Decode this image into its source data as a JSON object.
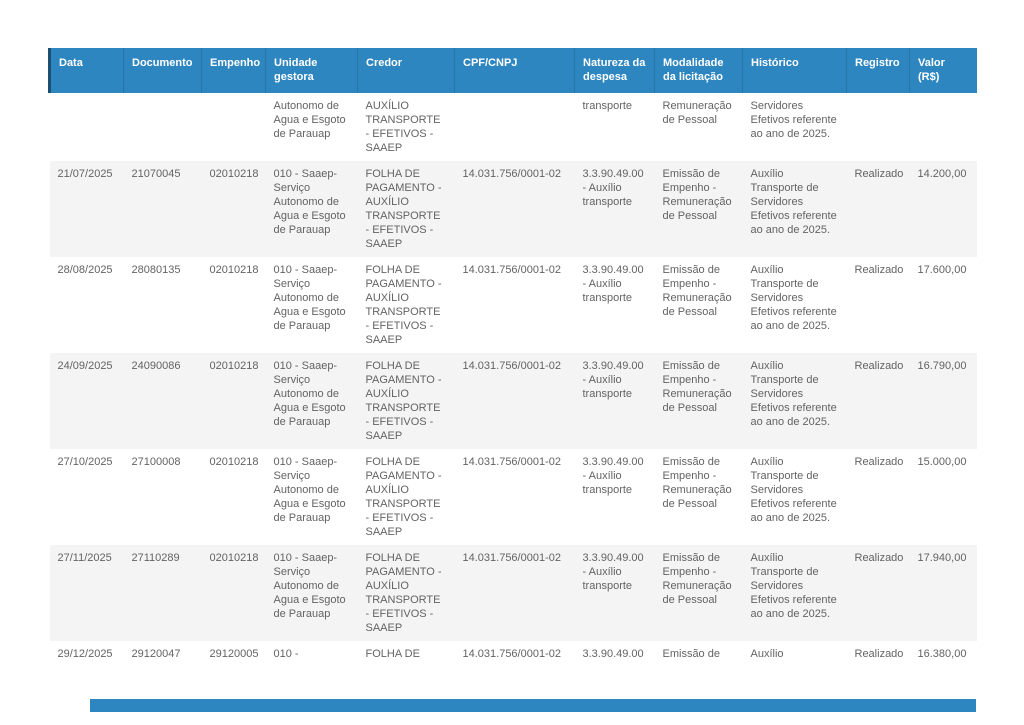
{
  "colors": {
    "header_bg": "#2e86c1",
    "header_text": "#ffffff",
    "header_edge": "#1b4f72",
    "row_alt_bg": "#f4f4f4",
    "body_text": "#636363"
  },
  "table": {
    "columns": [
      {
        "key": "data",
        "label": "Data"
      },
      {
        "key": "documento",
        "label": "Documento"
      },
      {
        "key": "empenho",
        "label": "Empenho"
      },
      {
        "key": "unidade",
        "label": "Unidade gestora"
      },
      {
        "key": "credor",
        "label": "Credor"
      },
      {
        "key": "cpf",
        "label": "CPF/CNPJ"
      },
      {
        "key": "natureza",
        "label": "Natureza da despesa"
      },
      {
        "key": "modalidade",
        "label": "Modalidade da licitação"
      },
      {
        "key": "historico",
        "label": "Histórico"
      },
      {
        "key": "registro",
        "label": "Registro"
      },
      {
        "key": "valor",
        "label": "Valor (R$)"
      }
    ],
    "rows": [
      {
        "data": "",
        "documento": "",
        "empenho": "",
        "unidade": "Autonomo de Agua e Esgoto de Parauap",
        "credor": "AUXÍLIO TRANSPORTE - EFETIVOS - SAAEP",
        "cpf": "",
        "natureza": "transporte",
        "modalidade": "Remuneração de Pessoal",
        "historico": "Servidores Efetivos referente ao ano de 2025.",
        "registro": "",
        "valor": ""
      },
      {
        "data": "21/07/2025",
        "documento": "21070045",
        "empenho": "02010218",
        "unidade": "010 - Saaep-Serviço Autonomo de Agua e Esgoto de Parauap",
        "credor": "FOLHA DE PAGAMENTO - AUXÍLIO TRANSPORTE - EFETIVOS - SAAEP",
        "cpf": "14.031.756/0001-02",
        "natureza": "3.3.90.49.00 - Auxílio transporte",
        "modalidade": "Emissão de Empenho - Remuneração de Pessoal",
        "historico": "Auxílio Transporte de Servidores Efetivos referente ao ano de 2025.",
        "registro": "Realizado",
        "valor": "14.200,00"
      },
      {
        "data": "28/08/2025",
        "documento": "28080135",
        "empenho": "02010218",
        "unidade": "010 - Saaep-Serviço Autonomo de Agua e Esgoto de Parauap",
        "credor": "FOLHA DE PAGAMENTO - AUXÍLIO TRANSPORTE - EFETIVOS - SAAEP",
        "cpf": "14.031.756/0001-02",
        "natureza": "3.3.90.49.00 - Auxílio transporte",
        "modalidade": "Emissão de Empenho - Remuneração de Pessoal",
        "historico": "Auxílio Transporte de Servidores Efetivos referente ao ano de 2025.",
        "registro": "Realizado",
        "valor": "17.600,00"
      },
      {
        "data": "24/09/2025",
        "documento": "24090086",
        "empenho": "02010218",
        "unidade": "010 - Saaep-Serviço Autonomo de Agua e Esgoto de Parauap",
        "credor": "FOLHA DE PAGAMENTO - AUXÍLIO TRANSPORTE - EFETIVOS - SAAEP",
        "cpf": "14.031.756/0001-02",
        "natureza": "3.3.90.49.00 - Auxílio transporte",
        "modalidade": "Emissão de Empenho - Remuneração de Pessoal",
        "historico": "Auxílio Transporte de Servidores Efetivos referente ao ano de 2025.",
        "registro": "Realizado",
        "valor": "16.790,00"
      },
      {
        "data": "27/10/2025",
        "documento": "27100008",
        "empenho": "02010218",
        "unidade": "010 - Saaep-Serviço Autonomo de Agua e Esgoto de Parauap",
        "credor": "FOLHA DE PAGAMENTO - AUXÍLIO TRANSPORTE - EFETIVOS - SAAEP",
        "cpf": "14.031.756/0001-02",
        "natureza": "3.3.90.49.00 - Auxílio transporte",
        "modalidade": "Emissão de Empenho - Remuneração de Pessoal",
        "historico": "Auxílio Transporte de Servidores Efetivos referente ao ano de 2025.",
        "registro": "Realizado",
        "valor": "15.000,00"
      },
      {
        "data": "27/11/2025",
        "documento": "27110289",
        "empenho": "02010218",
        "unidade": "010 - Saaep-Serviço Autonomo de Agua e Esgoto de Parauap",
        "credor": "FOLHA DE PAGAMENTO - AUXÍLIO TRANSPORTE - EFETIVOS - SAAEP",
        "cpf": "14.031.756/0001-02",
        "natureza": "3.3.90.49.00 - Auxílio transporte",
        "modalidade": "Emissão de Empenho - Remuneração de Pessoal",
        "historico": "Auxílio Transporte de Servidores Efetivos referente ao ano de 2025.",
        "registro": "Realizado",
        "valor": "17.940,00"
      },
      {
        "data": "29/12/2025",
        "documento": "29120047",
        "empenho": "29120005",
        "unidade": "010 -",
        "credor": "FOLHA DE",
        "cpf": "14.031.756/0001-02",
        "natureza": "3.3.90.49.00",
        "modalidade": "Emissão de",
        "historico": "Auxílio",
        "registro": "Realizado",
        "valor": "16.380,00"
      }
    ]
  }
}
